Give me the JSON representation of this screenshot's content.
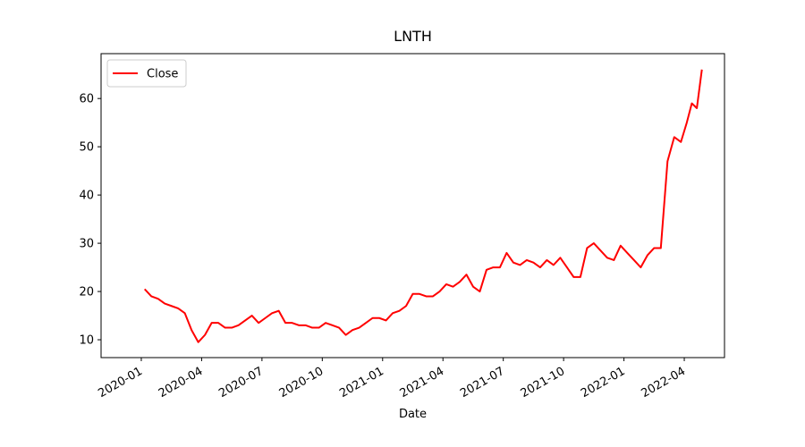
{
  "chart_data": {
    "type": "line",
    "title": "LNTH",
    "x_label": "Date",
    "x": [
      "2020-01",
      "2020-01",
      "2020-01",
      "2020-02",
      "2020-02",
      "2020-02",
      "2020-03",
      "2020-03",
      "2020-03",
      "2020-04",
      "2020-04",
      "2020-04",
      "2020-05",
      "2020-05",
      "2020-05",
      "2020-06",
      "2020-06",
      "2020-06",
      "2020-07",
      "2020-07",
      "2020-07",
      "2020-08",
      "2020-08",
      "2020-08",
      "2020-09",
      "2020-09",
      "2020-09",
      "2020-10",
      "2020-10",
      "2020-10",
      "2020-11",
      "2020-11",
      "2020-11",
      "2020-12",
      "2020-12",
      "2020-12",
      "2021-01",
      "2021-01",
      "2021-01",
      "2021-02",
      "2021-02",
      "2021-02",
      "2021-03",
      "2021-03",
      "2021-03",
      "2021-04",
      "2021-04",
      "2021-04",
      "2021-05",
      "2021-05",
      "2021-05",
      "2021-06",
      "2021-06",
      "2021-06",
      "2021-07",
      "2021-07",
      "2021-07",
      "2021-08",
      "2021-08",
      "2021-08",
      "2021-09",
      "2021-09",
      "2021-09",
      "2021-10",
      "2021-10",
      "2021-10",
      "2021-11",
      "2021-11",
      "2021-11",
      "2021-12",
      "2021-12",
      "2021-12",
      "2022-01",
      "2022-01",
      "2022-01",
      "2022-02",
      "2022-02",
      "2022-02",
      "2022-03",
      "2022-03",
      "2022-03",
      "2022-04",
      "2022-04",
      "2022-04",
      "2022-04"
    ],
    "series": [
      {
        "name": "Close",
        "color": "#ff0000",
        "values": [
          20.5,
          19,
          18.5,
          17.5,
          17,
          16.5,
          15.5,
          12,
          9.5,
          11,
          13.5,
          13.5,
          12.5,
          12.5,
          13,
          14,
          15,
          13.5,
          14.5,
          15.5,
          16,
          13.5,
          13.5,
          13,
          13,
          12.5,
          12.5,
          13.5,
          13,
          12.5,
          11,
          12,
          12.5,
          13.5,
          14.5,
          14.5,
          14,
          15.5,
          16,
          17,
          19.5,
          19.5,
          19,
          19,
          20,
          21.5,
          21,
          22,
          23.5,
          21,
          20,
          24.5,
          25,
          25,
          28,
          26,
          25.5,
          26.5,
          26,
          25,
          26.5,
          25.5,
          27,
          25,
          23,
          23,
          29,
          30,
          28.5,
          27,
          26.5,
          29.5,
          28,
          26.5,
          25,
          27.5,
          29,
          29,
          47,
          52,
          51,
          55,
          59,
          58,
          66
        ]
      }
    ],
    "xlim": [
      "2019-11",
      "2022-06"
    ],
    "xticks": [
      "2020-01",
      "2020-04",
      "2020-07",
      "2020-10",
      "2021-01",
      "2021-04",
      "2021-07",
      "2021-10",
      "2022-01",
      "2022-04"
    ],
    "ylim": [
      6.3,
      69.3
    ],
    "yticks": [
      10,
      20,
      30,
      40,
      50,
      60
    ],
    "legend": "upper left",
    "grid": false
  }
}
